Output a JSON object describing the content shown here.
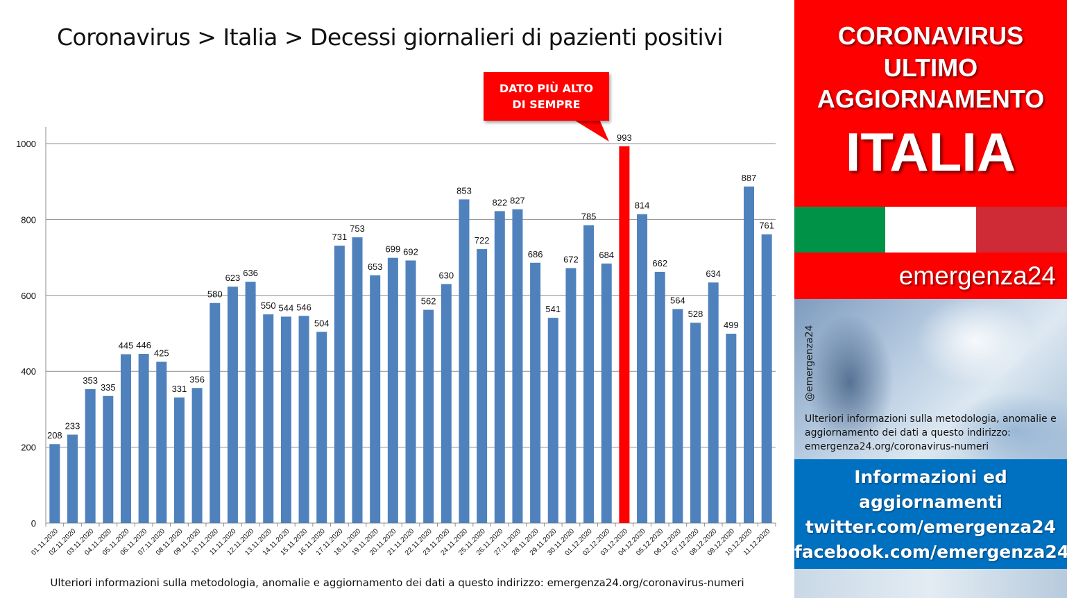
{
  "title": "Coronavirus > Italia > Decessi giornalieri di pazienti positivi",
  "footnote": "Ulteriori informazioni sulla metodologia, anomalie e aggiornamento dei dati a questo indirizzo: emergenza24.org/coronavirus-numeri",
  "callout": {
    "line1": "DATO PIÙ ALTO",
    "line2": "DI SEMPRE"
  },
  "colors": {
    "bar": "#4f81bd",
    "highlight": "#ff0000",
    "brand_red": "#ff0000",
    "info_blue": "#0070c0",
    "flag_green": "#009246",
    "flag_white": "#ffffff",
    "flag_red": "#ce2b37"
  },
  "side": {
    "hero_line1": "CORONAVIRUS",
    "hero_line2": "ULTIMO",
    "hero_line3": "AGGIORNAMENTO",
    "hero_country": "ITALIA",
    "brand": "emergenza24",
    "handle": "@emergenza24",
    "method_note": "Ulteriori informazioni sulla metodologia, anomalie e aggiornamento dei dati a questo indirizzo: emergenza24.org/coronavirus-numeri",
    "info_line1": "Informazioni ed",
    "info_line2": "aggiornamenti",
    "info_line3": "twitter.com/emergenza24",
    "info_line4": "facebook.com/emergenza24"
  },
  "chart_data": {
    "type": "bar",
    "title": "Coronavirus > Italia > Decessi giornalieri di pazienti positivi",
    "xlabel": "",
    "ylabel": "",
    "ylim": [
      0,
      1000
    ],
    "yticks": [
      0,
      200,
      400,
      600,
      800,
      1000
    ],
    "grid": true,
    "highlight_category": "03.12.2020",
    "categories": [
      "01.11.2020",
      "02.11.2020",
      "03.11.2020",
      "04.11.2020",
      "05.11.2020",
      "06.11.2020",
      "07.11.2020",
      "08.11.2020",
      "09.11.2020",
      "10.11.2020",
      "11.11.2020",
      "12.11.2020",
      "13.11.2020",
      "14.11.2020",
      "15.11.2020",
      "16.11.2020",
      "17.11.2020",
      "18.11.2020",
      "19.11.2020",
      "20.11.2020",
      "21.11.2020",
      "22.11.2020",
      "23.11.2020",
      "24.11.2020",
      "25.11.2020",
      "26.11.2020",
      "27.11.2020",
      "28.11.2020",
      "29.11.2020",
      "30.11.2020",
      "01.12.2020",
      "02.12.2020",
      "03.12.2020",
      "04.12.2020",
      "05.12.2020",
      "06.12.2020",
      "07.12.2020",
      "08.12.2020",
      "09.12.2020",
      "10.12.2020",
      "11.12.2020"
    ],
    "values": [
      208,
      233,
      353,
      335,
      445,
      446,
      425,
      331,
      356,
      580,
      623,
      636,
      550,
      544,
      546,
      504,
      731,
      753,
      653,
      699,
      692,
      562,
      630,
      853,
      722,
      822,
      827,
      686,
      541,
      672,
      785,
      684,
      993,
      814,
      662,
      564,
      528,
      634,
      499,
      887,
      761
    ]
  }
}
